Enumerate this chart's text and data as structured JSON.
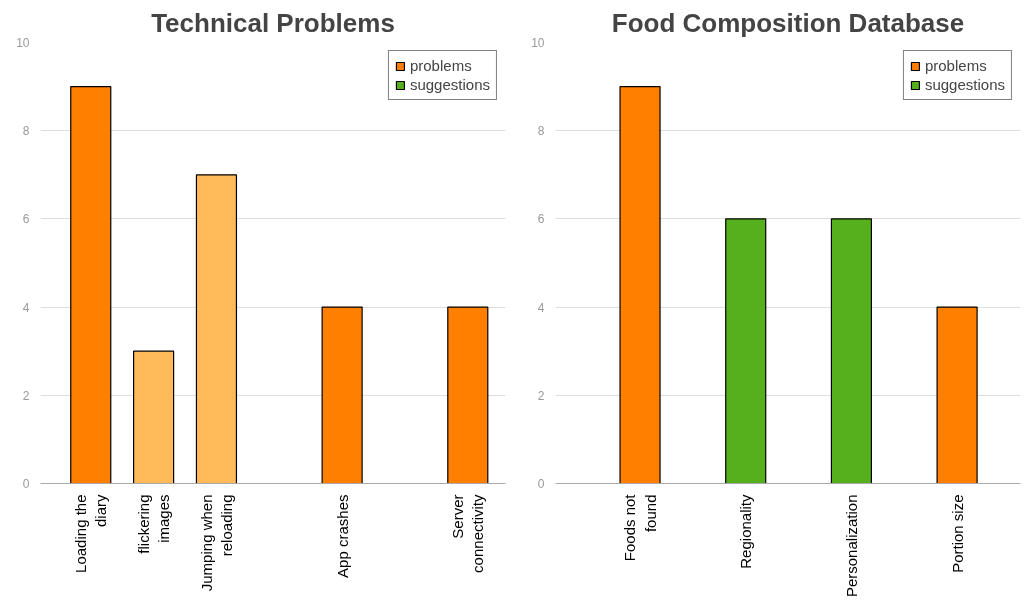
{
  "chart_data": [
    {
      "type": "bar",
      "title": "Technical Problems",
      "categories": [
        "Loading the\ndiary",
        "flickering\nimages",
        "Jumping when\nreloading",
        null,
        "App crashes",
        null,
        "Server\nconnectivity"
      ],
      "series": [
        {
          "name": "problems",
          "color": "#ff7f00",
          "colors": [
            "#ff7f00",
            "#ffbb5a",
            "#ffbb5a",
            null,
            "#ff7f00",
            null,
            "#ff7f00"
          ],
          "values": [
            9,
            3,
            7,
            null,
            4,
            null,
            4
          ]
        },
        {
          "name": "suggestions",
          "color": "#56b01e",
          "values": [
            null,
            null,
            null,
            null,
            null,
            null,
            null
          ]
        }
      ],
      "ylim": [
        0,
        10
      ],
      "yticks": [
        0,
        2,
        4,
        6,
        8,
        10
      ],
      "grid": "y",
      "legend": "top right"
    },
    {
      "type": "bar",
      "title": "Food Composition Database",
      "categories": [
        "Foods not\nfound",
        "Regionality",
        "Personalization",
        "Portion size"
      ],
      "series": [
        {
          "name": "problems",
          "color": "#ff7f00",
          "values": [
            9,
            null,
            null,
            4
          ]
        },
        {
          "name": "suggestions",
          "color": "#56b01e",
          "values": [
            null,
            6,
            6,
            null
          ]
        }
      ],
      "ylim": [
        0,
        10
      ],
      "yticks": [
        0,
        2,
        4,
        6,
        8,
        10
      ],
      "grid": "y",
      "legend": "top right"
    }
  ]
}
